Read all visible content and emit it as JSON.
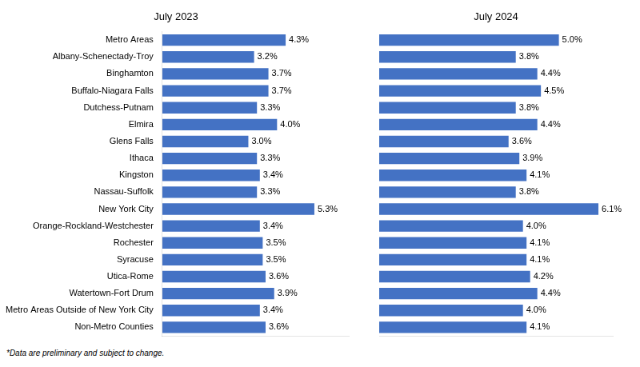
{
  "chart_data": [
    {
      "type": "bar",
      "title": "July 2023",
      "orientation": "horizontal",
      "categories": [
        "Metro Areas",
        "Albany-Schenectady-Troy",
        "Binghamton",
        "Buffalo-Niagara Falls",
        "Dutchess-Putnam",
        "Elmira",
        "Glens Falls",
        "Ithaca",
        "Kingston",
        "Nassau-Suffolk",
        "New York City",
        "Orange-Rockland-Westchester",
        "Rochester",
        "Syracuse",
        "Utica-Rome",
        "Watertown-Fort Drum",
        "Metro Areas Outside of New York City",
        "Non-Metro Counties"
      ],
      "values": [
        4.3,
        3.2,
        3.7,
        3.7,
        3.3,
        4.0,
        3.0,
        3.3,
        3.4,
        3.3,
        5.3,
        3.4,
        3.5,
        3.5,
        3.6,
        3.9,
        3.4,
        3.6
      ],
      "value_labels": [
        "4.3%",
        "3.2%",
        "3.7%",
        "3.7%",
        "3.3%",
        "4.0%",
        "3.0%",
        "3.3%",
        "3.4%",
        "3.3%",
        "5.3%",
        "3.4%",
        "3.5%",
        "3.5%",
        "3.6%",
        "3.9%",
        "3.4%",
        "3.6%"
      ],
      "data_labels": true,
      "color": "#4472C4",
      "xlim": [
        0,
        6.5
      ],
      "grid": false,
      "tick_labels": "y",
      "annotations": [
        "*Data are preliminary and subject to change."
      ]
    },
    {
      "type": "bar",
      "title": "July 2024",
      "orientation": "horizontal",
      "categories": [
        "Metro Areas",
        "Albany-Schenectady-Troy",
        "Binghamton",
        "Buffalo-Niagara Falls",
        "Dutchess-Putnam",
        "Elmira",
        "Glens Falls",
        "Ithaca",
        "Kingston",
        "Nassau-Suffolk",
        "New York City",
        "Orange-Rockland-Westchester",
        "Rochester",
        "Syracuse",
        "Utica-Rome",
        "Watertown-Fort Drum",
        "Metro Areas Outside of New York City",
        "Non-Metro Counties"
      ],
      "values": [
        5.0,
        3.8,
        4.4,
        4.5,
        3.8,
        4.4,
        3.6,
        3.9,
        4.1,
        3.8,
        6.1,
        4.0,
        4.1,
        4.1,
        4.2,
        4.4,
        4.0,
        4.1
      ],
      "value_labels": [
        "5.0%",
        "3.8%",
        "4.4%",
        "4.5%",
        "3.8%",
        "4.4%",
        "3.6%",
        "3.9%",
        "4.1%",
        "3.8%",
        "6.1%",
        "4.0%",
        "4.1%",
        "4.1%",
        "4.2%",
        "4.4%",
        "4.0%",
        "4.1%"
      ],
      "data_labels": true,
      "color": "#4472C4",
      "xlim": [
        0,
        6.5
      ],
      "grid": false,
      "tick_labels": false
    }
  ]
}
